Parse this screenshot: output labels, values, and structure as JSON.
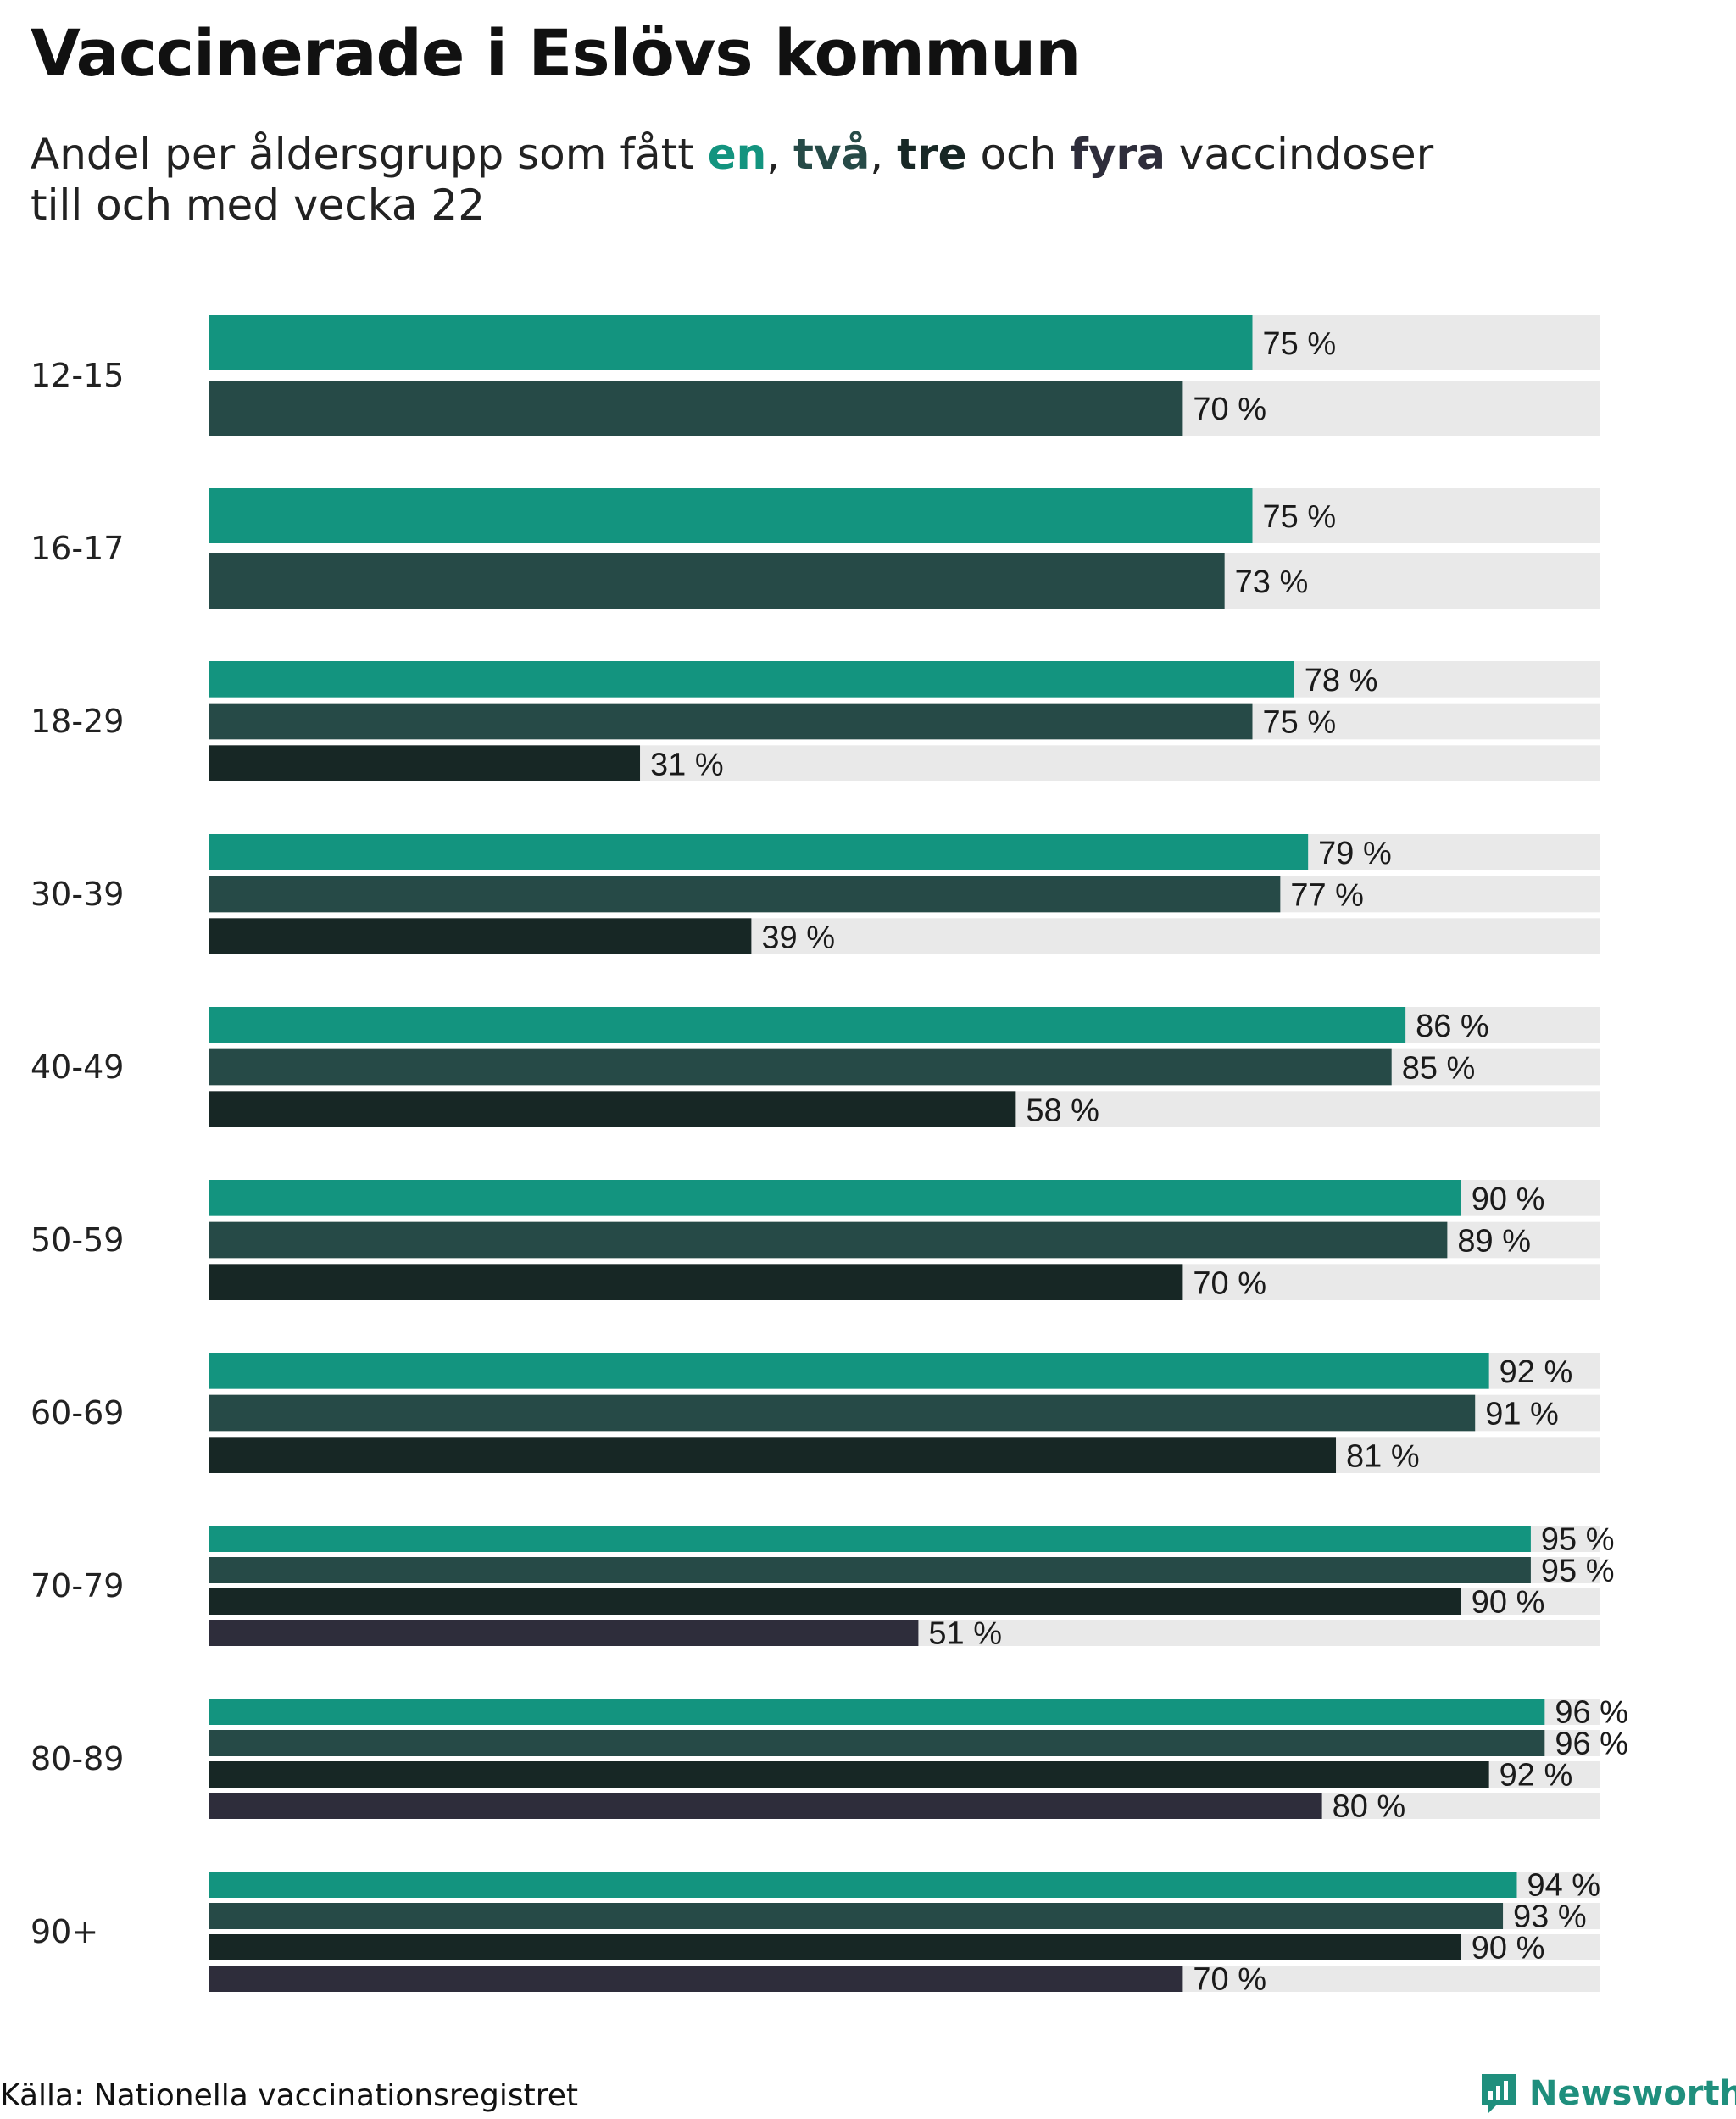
{
  "title": "Vaccinerade i Eslövs kommun",
  "subtitle": {
    "prefix": "Andel per åldersgrupp som fått ",
    "dose1": "en",
    "sep1": ", ",
    "dose2": "två",
    "sep2": ", ",
    "dose3": "tre",
    "mid": " och ",
    "dose4": "fyra",
    "suffix": " vaccindoser",
    "line2": "till och med vecka 22"
  },
  "source": "Källa: Nationella vaccinationsregistret",
  "brand": "Newsworthy",
  "colors": {
    "dose1": "#13947f",
    "dose2": "#264a47",
    "dose3": "#172725",
    "dose4": "#2e2d3b",
    "track": "#e9e9e9",
    "brand": "#1f8f7d"
  },
  "chart_data": {
    "type": "bar",
    "orientation": "horizontal",
    "title": "Vaccinerade i Eslövs kommun",
    "subtitle": "Andel per åldersgrupp som fått en, två, tre och fyra vaccindoser till och med vecka 22",
    "xlim": [
      0,
      100
    ],
    "value_suffix": " %",
    "grid": false,
    "series_names": [
      "en",
      "två",
      "tre",
      "fyra"
    ],
    "groups": [
      {
        "label": "12-15",
        "values": [
          75,
          70
        ]
      },
      {
        "label": "16-17",
        "values": [
          75,
          73
        ]
      },
      {
        "label": "18-29",
        "values": [
          78,
          75,
          31
        ]
      },
      {
        "label": "30-39",
        "values": [
          79,
          77,
          39
        ]
      },
      {
        "label": "40-49",
        "values": [
          86,
          85,
          58
        ]
      },
      {
        "label": "50-59",
        "values": [
          90,
          89,
          70
        ]
      },
      {
        "label": "60-69",
        "values": [
          92,
          91,
          81
        ]
      },
      {
        "label": "70-79",
        "values": [
          95,
          95,
          90,
          51
        ]
      },
      {
        "label": "80-89",
        "values": [
          96,
          96,
          92,
          80
        ]
      },
      {
        "label": "90+",
        "values": [
          94,
          93,
          90,
          70
        ]
      }
    ]
  }
}
